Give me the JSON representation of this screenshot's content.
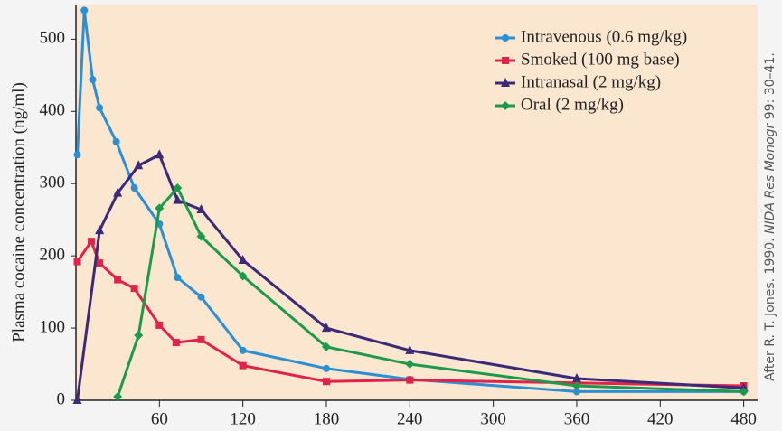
{
  "chart_data": {
    "type": "line",
    "y_label": "Plasma cocaine concentration (ng/ml)",
    "credit": [
      "After R. T. Jones. 1990. ",
      "NIDA Res Monogr",
      " 99: 30–41."
    ],
    "xlim": [
      0,
      490
    ],
    "xticks": [
      60,
      120,
      180,
      240,
      300,
      360,
      420,
      480
    ],
    "ylim": [
      0,
      548
    ],
    "yticks": [
      0,
      100,
      200,
      300,
      400,
      500
    ],
    "legend": "top-right",
    "series": [
      {
        "name": "Intravenous (0.6 mg/kg)",
        "color": "#2b8fd3",
        "marker": "circle",
        "x": [
          1,
          6,
          12,
          17,
          29,
          42,
          60,
          73,
          90,
          120,
          180,
          240,
          360,
          480
        ],
        "values": [
          340,
          540,
          444,
          405,
          358,
          294,
          244,
          170,
          143,
          69,
          44,
          29,
          12,
          12
        ]
      },
      {
        "name": "Smoked (100 mg base)",
        "color": "#e1224b",
        "marker": "square",
        "x": [
          1,
          11,
          17,
          30,
          42,
          60,
          72,
          90,
          120,
          180,
          240,
          480
        ],
        "values": [
          192,
          220,
          190,
          167,
          155,
          104,
          80,
          84,
          48,
          26,
          28,
          20
        ]
      },
      {
        "name": "Intranasal (2 mg/kg)",
        "color": "#3b2a78",
        "marker": "triangle",
        "x": [
          1,
          17,
          30,
          45,
          60,
          73,
          90,
          120,
          180,
          240,
          360,
          480
        ],
        "values": [
          0,
          235,
          287,
          325,
          340,
          277,
          264,
          194,
          100,
          69,
          30,
          17
        ]
      },
      {
        "name": "Oral (2 mg/kg)",
        "color": "#1b9a4c",
        "marker": "diamond",
        "x": [
          30,
          45,
          60,
          73,
          90,
          120,
          180,
          240,
          360,
          480
        ],
        "values": [
          5,
          90,
          266,
          294,
          227,
          172,
          74,
          50,
          20,
          12
        ]
      }
    ]
  }
}
